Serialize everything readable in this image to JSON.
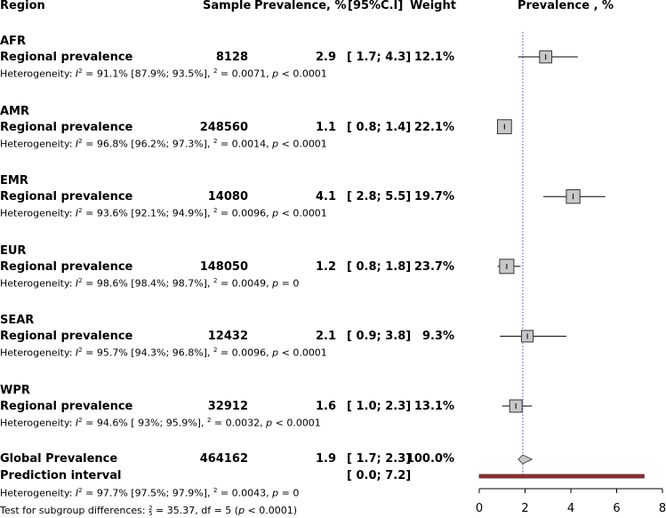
{
  "header": {
    "region": "Region",
    "sample": "Sample",
    "prevalence": "Prevalence, %",
    "ci": "[95%C.I]",
    "weight": "Weight",
    "plot_title": "Prevalence , %"
  },
  "groups": [
    {
      "region": "AFR",
      "label": "Regional prevalence",
      "sample": "8128",
      "prevalence": "2.9",
      "ci": "[ 1.7;  4.3]",
      "weight": "12.1%",
      "het_prefix": "Heterogeneity: ",
      "het_stat": " = 91.1% [87.9%; 93.5%],  ",
      "het_tau": " = 0.0071, ",
      "het_p": " < 0.0001"
    },
    {
      "region": "AMR",
      "label": "Regional prevalence",
      "sample": "248560",
      "prevalence": "1.1",
      "ci": "[ 0.8;  1.4]",
      "weight": "22.1%",
      "het_prefix": "Heterogeneity: ",
      "het_stat": " = 96.8% [96.2%; 97.3%],  ",
      "het_tau": " = 0.0014, ",
      "het_p": " < 0.0001"
    },
    {
      "region": "EMR",
      "label": "Regional prevalence",
      "sample": "14080",
      "prevalence": "4.1",
      "ci": "[ 2.8;  5.5]",
      "weight": "19.7%",
      "het_prefix": "Heterogeneity: ",
      "het_stat": " = 93.6% [92.1%; 94.9%],  ",
      "het_tau": " = 0.0096, ",
      "het_p": " < 0.0001"
    },
    {
      "region": "EUR",
      "label": "Regional prevalence",
      "sample": "148050",
      "prevalence": "1.2",
      "ci": "[ 0.8;  1.8]",
      "weight": "23.7%",
      "het_prefix": "Heterogeneity: ",
      "het_stat": " = 98.6% [98.4%; 98.7%],  ",
      "het_tau": " = 0.0049, ",
      "het_p": " = 0"
    },
    {
      "region": "SEAR",
      "label": "Regional prevalence",
      "sample": "12432",
      "prevalence": "2.1",
      "ci": "[ 0.9;  3.8]",
      "weight": "9.3%",
      "het_prefix": "Heterogeneity: ",
      "het_stat": " = 95.7% [94.3%; 96.8%],  ",
      "het_tau": " = 0.0096, ",
      "het_p": " < 0.0001"
    },
    {
      "region": "WPR",
      "label": "Regional prevalence",
      "sample": "32912",
      "prevalence": "1.6",
      "ci": "[ 1.0;  2.3]",
      "weight": "13.1%",
      "het_prefix": "Heterogeneity: ",
      "het_stat": " = 94.6% [ 93%; 95.9%],  ",
      "het_tau": " = 0.0032, ",
      "het_p": " < 0.0001"
    }
  ],
  "global": {
    "label": "Global Prevalence",
    "sample": "464162",
    "prevalence": "1.9",
    "ci": "[ 1.7;  2.3]",
    "weight": "100.0%",
    "pi_label": "Prediction interval",
    "pi_ci": "[ 0.0;  7.2]",
    "het_prefix": "Heterogeneity: ",
    "het_stat": " = 97.7% [97.5%; 97.9%],  ",
    "het_tau": " = 0.0043, ",
    "het_p": " = 0",
    "subgroup_prefix": "Test for subgroup differences:  ",
    "subgroup_stat": " = 35.37, df = 5 (",
    "subgroup_p": " < 0.0001)"
  },
  "chart_data": {
    "type": "forest",
    "title": "Prevalence , %",
    "xlim": [
      0,
      8
    ],
    "xticks": [
      "0",
      "2",
      "4",
      "6",
      "8"
    ],
    "reference_line": 1.9,
    "studies": [
      {
        "name": "AFR",
        "est": 2.9,
        "lo": 1.7,
        "hi": 4.3,
        "weight": 12.1
      },
      {
        "name": "AMR",
        "est": 1.1,
        "lo": 0.8,
        "hi": 1.4,
        "weight": 22.1
      },
      {
        "name": "EMR",
        "est": 4.1,
        "lo": 2.8,
        "hi": 5.5,
        "weight": 19.7
      },
      {
        "name": "EUR",
        "est": 1.2,
        "lo": 0.8,
        "hi": 1.8,
        "weight": 23.7
      },
      {
        "name": "SEAR",
        "est": 2.1,
        "lo": 0.9,
        "hi": 3.8,
        "weight": 9.3
      },
      {
        "name": "WPR",
        "est": 1.6,
        "lo": 1.0,
        "hi": 2.3,
        "weight": 13.1
      }
    ],
    "pooled": {
      "est": 1.9,
      "lo": 1.7,
      "hi": 2.3
    },
    "prediction_interval": {
      "lo": 0.0,
      "hi": 7.2
    },
    "colors": {
      "box_fill": "#c8c8c8",
      "box_stroke": "#333333",
      "diamond_fill": "#c8c8c8",
      "pi_fill": "#a52a2a",
      "ref_line": "#4a4ab8"
    }
  }
}
